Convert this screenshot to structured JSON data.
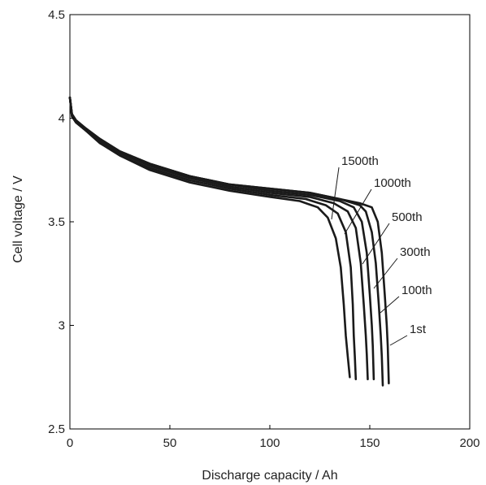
{
  "chart_data": {
    "type": "line",
    "title": "",
    "xlabel": "Discharge capacity / Ah",
    "ylabel": "Cell voltage / V",
    "xlim": [
      0,
      200
    ],
    "ylim": [
      2.5,
      4.5
    ],
    "x_ticks": [
      0,
      50,
      100,
      150,
      200
    ],
    "x_tick_labels": [
      "0",
      "50",
      "100",
      "150",
      "200"
    ],
    "y_ticks": [
      2.5,
      3,
      3.5,
      4,
      4.5
    ],
    "y_tick_labels": [
      "2.5",
      "3",
      "3.5",
      "4",
      "4.5"
    ],
    "grid": false,
    "series": [
      {
        "name": "1st",
        "points": [
          [
            0,
            4.1
          ],
          [
            1,
            4.02
          ],
          [
            3,
            3.99
          ],
          [
            8,
            3.95
          ],
          [
            15,
            3.9
          ],
          [
            25,
            3.84
          ],
          [
            40,
            3.78
          ],
          [
            60,
            3.72
          ],
          [
            80,
            3.68
          ],
          [
            100,
            3.66
          ],
          [
            120,
            3.64
          ],
          [
            135,
            3.61
          ],
          [
            145,
            3.59
          ],
          [
            151,
            3.57
          ],
          [
            154,
            3.5
          ],
          [
            156,
            3.35
          ],
          [
            157.5,
            3.15
          ],
          [
            158.5,
            3.0
          ],
          [
            159,
            2.9
          ],
          [
            159.5,
            2.72
          ]
        ]
      },
      {
        "name": "100th",
        "points": [
          [
            0,
            4.1
          ],
          [
            1,
            4.02
          ],
          [
            3,
            3.99
          ],
          [
            8,
            3.95
          ],
          [
            15,
            3.9
          ],
          [
            25,
            3.84
          ],
          [
            40,
            3.78
          ],
          [
            60,
            3.72
          ],
          [
            80,
            3.68
          ],
          [
            100,
            3.66
          ],
          [
            120,
            3.64
          ],
          [
            135,
            3.61
          ],
          [
            145,
            3.58
          ],
          [
            148,
            3.55
          ],
          [
            151,
            3.45
          ],
          [
            153,
            3.3
          ],
          [
            154.5,
            3.1
          ],
          [
            155.5,
            2.95
          ],
          [
            156,
            2.85
          ],
          [
            156.5,
            2.71
          ]
        ]
      },
      {
        "name": "300th",
        "points": [
          [
            0,
            4.1
          ],
          [
            1,
            4.02
          ],
          [
            3,
            3.99
          ],
          [
            8,
            3.95
          ],
          [
            15,
            3.9
          ],
          [
            25,
            3.84
          ],
          [
            40,
            3.78
          ],
          [
            60,
            3.72
          ],
          [
            80,
            3.68
          ],
          [
            100,
            3.65
          ],
          [
            120,
            3.63
          ],
          [
            135,
            3.6
          ],
          [
            142,
            3.57
          ],
          [
            146,
            3.5
          ],
          [
            148.5,
            3.35
          ],
          [
            150,
            3.15
          ],
          [
            151,
            3.0
          ],
          [
            151.5,
            2.9
          ],
          [
            152,
            2.74
          ]
        ]
      },
      {
        "name": "500th",
        "points": [
          [
            0,
            4.1
          ],
          [
            1,
            4.01
          ],
          [
            3,
            3.98
          ],
          [
            8,
            3.94
          ],
          [
            15,
            3.89
          ],
          [
            25,
            3.83
          ],
          [
            40,
            3.77
          ],
          [
            60,
            3.71
          ],
          [
            80,
            3.67
          ],
          [
            100,
            3.64
          ],
          [
            120,
            3.62
          ],
          [
            132,
            3.59
          ],
          [
            139,
            3.55
          ],
          [
            143,
            3.47
          ],
          [
            145.5,
            3.3
          ],
          [
            147,
            3.1
          ],
          [
            148,
            2.95
          ],
          [
            148.5,
            2.86
          ],
          [
            149,
            2.74
          ]
        ]
      },
      {
        "name": "1000th",
        "points": [
          [
            0,
            4.1
          ],
          [
            1,
            4.01
          ],
          [
            3,
            3.98
          ],
          [
            8,
            3.94
          ],
          [
            15,
            3.88
          ],
          [
            25,
            3.82
          ],
          [
            40,
            3.76
          ],
          [
            60,
            3.7
          ],
          [
            80,
            3.66
          ],
          [
            100,
            3.63
          ],
          [
            118,
            3.61
          ],
          [
            128,
            3.58
          ],
          [
            134,
            3.54
          ],
          [
            138,
            3.45
          ],
          [
            140.5,
            3.28
          ],
          [
            141.5,
            3.1
          ],
          [
            142,
            2.95
          ],
          [
            142.5,
            2.85
          ],
          [
            143,
            2.74
          ]
        ]
      },
      {
        "name": "1500th",
        "points": [
          [
            0,
            4.1
          ],
          [
            1,
            4.01
          ],
          [
            3,
            3.98
          ],
          [
            8,
            3.94
          ],
          [
            15,
            3.88
          ],
          [
            25,
            3.82
          ],
          [
            40,
            3.75
          ],
          [
            60,
            3.69
          ],
          [
            80,
            3.65
          ],
          [
            100,
            3.62
          ],
          [
            115,
            3.6
          ],
          [
            124,
            3.57
          ],
          [
            129,
            3.52
          ],
          [
            133,
            3.42
          ],
          [
            135.5,
            3.28
          ],
          [
            137,
            3.1
          ],
          [
            138,
            2.95
          ],
          [
            139,
            2.85
          ],
          [
            140,
            2.75
          ]
        ]
      }
    ],
    "annotations": [
      "1500th",
      "1000th",
      "500th",
      "300th",
      "100th",
      "1st"
    ]
  }
}
